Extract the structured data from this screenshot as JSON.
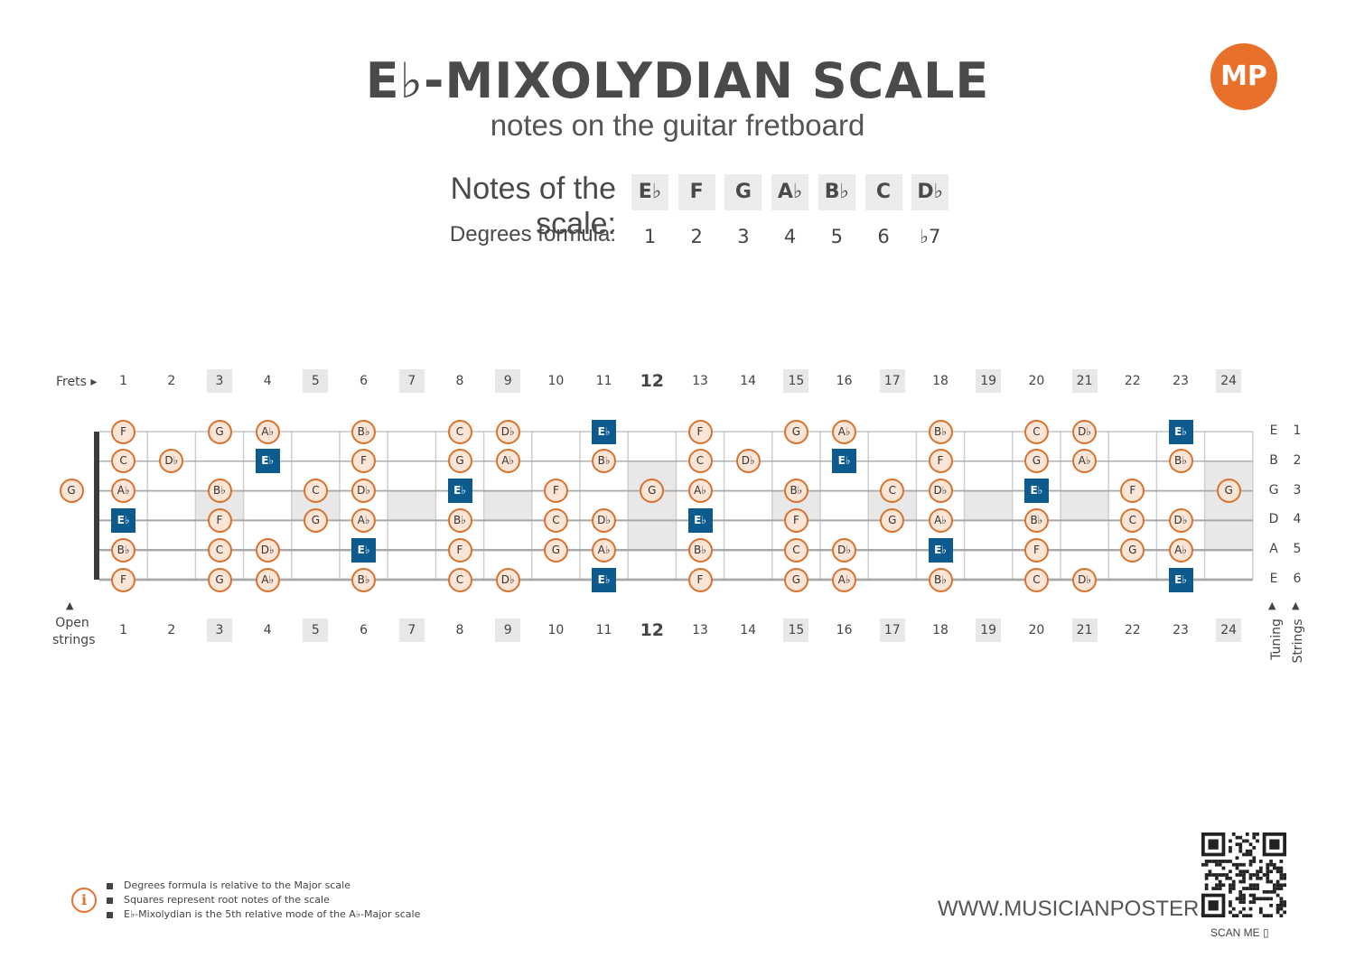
{
  "header": {
    "title": "E♭-MIXOLYDIAN SCALE",
    "subtitle": "notes on the guitar fretboard",
    "logo_text": "MP"
  },
  "scale": {
    "notes_label": "Notes of the scale:",
    "degrees_label": "Degrees formula:",
    "notes": [
      "E♭",
      "F",
      "G",
      "A♭",
      "B♭",
      "C",
      "D♭"
    ],
    "degrees": [
      "1",
      "2",
      "3",
      "4",
      "5",
      "6",
      "♭7"
    ]
  },
  "fretboard": {
    "frets_label": "Frets",
    "open_label_line1": "Open",
    "open_label_line2": "strings",
    "tuning_label": "Tuning",
    "strings_label": "Strings",
    "fret_numbers": [
      "1",
      "2",
      "3",
      "4",
      "5",
      "6",
      "7",
      "8",
      "9",
      "10",
      "11",
      "12",
      "13",
      "14",
      "15",
      "16",
      "17",
      "18",
      "19",
      "20",
      "21",
      "22",
      "23",
      "24"
    ],
    "marked_frets": [
      3,
      5,
      7,
      9,
      12,
      15,
      17,
      19,
      21,
      24
    ],
    "big_fret": 12,
    "strings": [
      {
        "name": "E",
        "number": "1"
      },
      {
        "name": "B",
        "number": "2"
      },
      {
        "name": "G",
        "number": "3"
      },
      {
        "name": "D",
        "number": "4"
      },
      {
        "name": "A",
        "number": "5"
      },
      {
        "name": "E",
        "number": "6"
      }
    ],
    "open_notes": [
      {
        "string": 3,
        "note": "G",
        "root": false
      }
    ],
    "notes": [
      {
        "string": 1,
        "fret": 1,
        "note": "F",
        "root": false
      },
      {
        "string": 1,
        "fret": 3,
        "note": "G",
        "root": false
      },
      {
        "string": 1,
        "fret": 4,
        "note": "A♭",
        "root": false
      },
      {
        "string": 1,
        "fret": 6,
        "note": "B♭",
        "root": false
      },
      {
        "string": 1,
        "fret": 8,
        "note": "C",
        "root": false
      },
      {
        "string": 1,
        "fret": 9,
        "note": "D♭",
        "root": false
      },
      {
        "string": 1,
        "fret": 11,
        "note": "E♭",
        "root": true
      },
      {
        "string": 1,
        "fret": 13,
        "note": "F",
        "root": false
      },
      {
        "string": 1,
        "fret": 15,
        "note": "G",
        "root": false
      },
      {
        "string": 1,
        "fret": 16,
        "note": "A♭",
        "root": false
      },
      {
        "string": 1,
        "fret": 18,
        "note": "B♭",
        "root": false
      },
      {
        "string": 1,
        "fret": 20,
        "note": "C",
        "root": false
      },
      {
        "string": 1,
        "fret": 21,
        "note": "D♭",
        "root": false
      },
      {
        "string": 1,
        "fret": 23,
        "note": "E♭",
        "root": true
      },
      {
        "string": 2,
        "fret": 1,
        "note": "C",
        "root": false
      },
      {
        "string": 2,
        "fret": 2,
        "note": "D♭",
        "root": false
      },
      {
        "string": 2,
        "fret": 4,
        "note": "E♭",
        "root": true
      },
      {
        "string": 2,
        "fret": 6,
        "note": "F",
        "root": false
      },
      {
        "string": 2,
        "fret": 8,
        "note": "G",
        "root": false
      },
      {
        "string": 2,
        "fret": 9,
        "note": "A♭",
        "root": false
      },
      {
        "string": 2,
        "fret": 11,
        "note": "B♭",
        "root": false
      },
      {
        "string": 2,
        "fret": 13,
        "note": "C",
        "root": false
      },
      {
        "string": 2,
        "fret": 14,
        "note": "D♭",
        "root": false
      },
      {
        "string": 2,
        "fret": 16,
        "note": "E♭",
        "root": true
      },
      {
        "string": 2,
        "fret": 18,
        "note": "F",
        "root": false
      },
      {
        "string": 2,
        "fret": 20,
        "note": "G",
        "root": false
      },
      {
        "string": 2,
        "fret": 21,
        "note": "A♭",
        "root": false
      },
      {
        "string": 2,
        "fret": 23,
        "note": "B♭",
        "root": false
      },
      {
        "string": 3,
        "fret": 1,
        "note": "A♭",
        "root": false
      },
      {
        "string": 3,
        "fret": 3,
        "note": "B♭",
        "root": false
      },
      {
        "string": 3,
        "fret": 5,
        "note": "C",
        "root": false
      },
      {
        "string": 3,
        "fret": 6,
        "note": "D♭",
        "root": false
      },
      {
        "string": 3,
        "fret": 8,
        "note": "E♭",
        "root": true
      },
      {
        "string": 3,
        "fret": 10,
        "note": "F",
        "root": false
      },
      {
        "string": 3,
        "fret": 12,
        "note": "G",
        "root": false
      },
      {
        "string": 3,
        "fret": 13,
        "note": "A♭",
        "root": false
      },
      {
        "string": 3,
        "fret": 15,
        "note": "B♭",
        "root": false
      },
      {
        "string": 3,
        "fret": 17,
        "note": "C",
        "root": false
      },
      {
        "string": 3,
        "fret": 18,
        "note": "D♭",
        "root": false
      },
      {
        "string": 3,
        "fret": 20,
        "note": "E♭",
        "root": true
      },
      {
        "string": 3,
        "fret": 22,
        "note": "F",
        "root": false
      },
      {
        "string": 3,
        "fret": 24,
        "note": "G",
        "root": false
      },
      {
        "string": 4,
        "fret": 1,
        "note": "E♭",
        "root": true
      },
      {
        "string": 4,
        "fret": 3,
        "note": "F",
        "root": false
      },
      {
        "string": 4,
        "fret": 5,
        "note": "G",
        "root": false
      },
      {
        "string": 4,
        "fret": 6,
        "note": "A♭",
        "root": false
      },
      {
        "string": 4,
        "fret": 8,
        "note": "B♭",
        "root": false
      },
      {
        "string": 4,
        "fret": 10,
        "note": "C",
        "root": false
      },
      {
        "string": 4,
        "fret": 11,
        "note": "D♭",
        "root": false
      },
      {
        "string": 4,
        "fret": 13,
        "note": "E♭",
        "root": true
      },
      {
        "string": 4,
        "fret": 15,
        "note": "F",
        "root": false
      },
      {
        "string": 4,
        "fret": 17,
        "note": "G",
        "root": false
      },
      {
        "string": 4,
        "fret": 18,
        "note": "A♭",
        "root": false
      },
      {
        "string": 4,
        "fret": 20,
        "note": "B♭",
        "root": false
      },
      {
        "string": 4,
        "fret": 22,
        "note": "C",
        "root": false
      },
      {
        "string": 4,
        "fret": 23,
        "note": "D♭",
        "root": false
      },
      {
        "string": 5,
        "fret": 1,
        "note": "B♭",
        "root": false
      },
      {
        "string": 5,
        "fret": 3,
        "note": "C",
        "root": false
      },
      {
        "string": 5,
        "fret": 4,
        "note": "D♭",
        "root": false
      },
      {
        "string": 5,
        "fret": 6,
        "note": "E♭",
        "root": true
      },
      {
        "string": 5,
        "fret": 8,
        "note": "F",
        "root": false
      },
      {
        "string": 5,
        "fret": 10,
        "note": "G",
        "root": false
      },
      {
        "string": 5,
        "fret": 11,
        "note": "A♭",
        "root": false
      },
      {
        "string": 5,
        "fret": 13,
        "note": "B♭",
        "root": false
      },
      {
        "string": 5,
        "fret": 15,
        "note": "C",
        "root": false
      },
      {
        "string": 5,
        "fret": 16,
        "note": "D♭",
        "root": false
      },
      {
        "string": 5,
        "fret": 18,
        "note": "E♭",
        "root": true
      },
      {
        "string": 5,
        "fret": 20,
        "note": "F",
        "root": false
      },
      {
        "string": 5,
        "fret": 22,
        "note": "G",
        "root": false
      },
      {
        "string": 5,
        "fret": 23,
        "note": "A♭",
        "root": false
      },
      {
        "string": 6,
        "fret": 1,
        "note": "F",
        "root": false
      },
      {
        "string": 6,
        "fret": 3,
        "note": "G",
        "root": false
      },
      {
        "string": 6,
        "fret": 4,
        "note": "A♭",
        "root": false
      },
      {
        "string": 6,
        "fret": 6,
        "note": "B♭",
        "root": false
      },
      {
        "string": 6,
        "fret": 8,
        "note": "C",
        "root": false
      },
      {
        "string": 6,
        "fret": 9,
        "note": "D♭",
        "root": false
      },
      {
        "string": 6,
        "fret": 11,
        "note": "E♭",
        "root": true
      },
      {
        "string": 6,
        "fret": 13,
        "note": "F",
        "root": false
      },
      {
        "string": 6,
        "fret": 15,
        "note": "G",
        "root": false
      },
      {
        "string": 6,
        "fret": 16,
        "note": "A♭",
        "root": false
      },
      {
        "string": 6,
        "fret": 18,
        "note": "B♭",
        "root": false
      },
      {
        "string": 6,
        "fret": 20,
        "note": "C",
        "root": false
      },
      {
        "string": 6,
        "fret": 21,
        "note": "D♭",
        "root": false
      },
      {
        "string": 6,
        "fret": 23,
        "note": "E♭",
        "root": true
      }
    ]
  },
  "footer": {
    "notes": [
      "Degrees formula is relative to the Major scale",
      "Squares represent root notes of the scale",
      "E♭-Mixolydian is the 5th relative mode of the A♭-Major scale"
    ],
    "website": "WWW.MUSICIANPOSTER.COM",
    "scan_label": "SCAN ME"
  },
  "colors": {
    "note_fill": "#fbe5d6",
    "note_border": "#d9722e",
    "root_fill": "#0d5a8f",
    "accent": "#e8702a",
    "inlay_shade": "#e8e8e8"
  },
  "icons": [
    "info-icon",
    "qr-code-icon",
    "phone-icon",
    "musician-poster-logo"
  ]
}
